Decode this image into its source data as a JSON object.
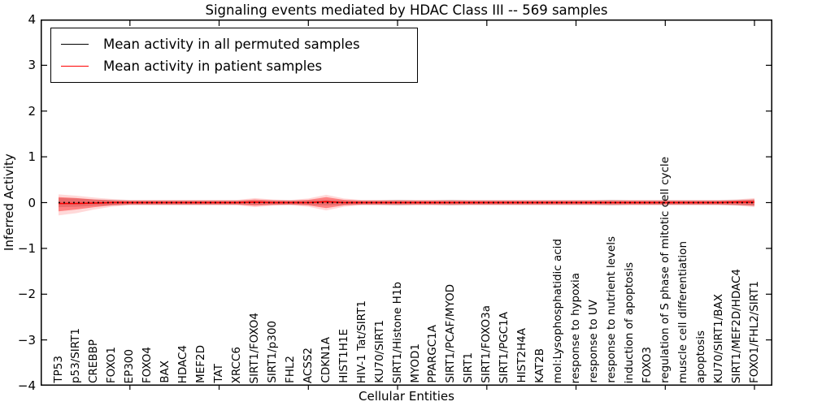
{
  "title": "Signaling events mediated by HDAC Class III -- 569 samples",
  "axes": {
    "ytick_labels": [
      "4",
      "3",
      "2",
      "1",
      "0",
      "−1",
      "−2",
      "−3",
      "−4"
    ]
  },
  "chart_data": {
    "type": "line",
    "title": "Signaling events mediated by HDAC Class III -- 569 samples",
    "xlabel": "Cellular Entities",
    "ylabel": "Inferred Activity",
    "ylim": [
      -4,
      4
    ],
    "xlim": [
      0,
      41
    ],
    "xtick_interval": 5,
    "grid": "off",
    "legend_position": "upper left",
    "categories": [
      "TP53",
      "p53/SIRT1",
      "CREBBP",
      "FOXO1",
      "EP300",
      "FOXO4",
      "BAX",
      "HDAC4",
      "MEF2D",
      "TAT",
      "XRCC6",
      "SIRT1/FOXO4",
      "SIRT1/p300",
      "FHL2",
      "ACSS2",
      "CDKN1A",
      "HIST1H1E",
      "HIV-1 Tat/SIRT1",
      "KU70/SIRT1",
      "SIRT1/Histone H1b",
      "MYOD1",
      "PPARGC1A",
      "SIRT1/PCAF/MYOD",
      "SIRT1",
      "SIRT1/FOXO3a",
      "SIRT1/PGC1A",
      "HIST2H4A",
      "KAT2B",
      "mol:Lysophosphatidic acid",
      "response to hypoxia",
      "response to UV",
      "response to nutrient levels",
      "induction of apoptosis",
      "FOXO3",
      "regulation of S phase of mitotic cell cycle",
      "muscle cell differentiation",
      "apoptosis",
      "KU70/SIRT1/BAX",
      "SIRT1/MEF2D/HDAC4",
      "FOXO1/FHL2/SIRT1"
    ],
    "series": [
      {
        "name": "Mean activity in all permuted samples",
        "id": "permuted",
        "color": "#000000",
        "line_style": "dotted",
        "dash": "1.8 4.2",
        "width": 1.8,
        "values": [
          0,
          0,
          0,
          0,
          0,
          0,
          0,
          0,
          0,
          0,
          0,
          0,
          0,
          0,
          0,
          0,
          0,
          0,
          0,
          0,
          0,
          0,
          0,
          0,
          0,
          0,
          0,
          0,
          0,
          0,
          0,
          0,
          0,
          0,
          0,
          0,
          0,
          0,
          0,
          0
        ]
      },
      {
        "name": "Mean activity in patient samples",
        "id": "patient",
        "color": "#ff0000",
        "line_style": "solid",
        "dash": "",
        "width": 1.6,
        "values": [
          -0.02,
          -0.02,
          -0.01,
          0,
          0,
          0,
          0,
          0,
          0,
          0,
          0,
          0.01,
          0,
          0,
          0,
          0.02,
          0,
          0,
          0,
          0,
          0,
          0,
          0,
          0,
          0,
          0,
          0,
          0,
          0,
          0,
          0,
          0,
          0,
          0,
          0,
          0,
          0,
          0,
          0.01,
          0.01
        ]
      }
    ],
    "bands": [
      {
        "name": "permuted-range",
        "color": "#777777",
        "opacity": 0.3,
        "upper": [
          0.1,
          0.09,
          0.07,
          0.06,
          0.05,
          0.05,
          0.05,
          0.05,
          0.05,
          0.05,
          0.05,
          0.05,
          0.05,
          0.05,
          0.05,
          0.06,
          0.05,
          0.05,
          0.05,
          0.06,
          0.05,
          0.05,
          0.06,
          0.05,
          0.05,
          0.05,
          0.05,
          0.05,
          0.05,
          0.05,
          0.05,
          0.06,
          0.05,
          0.05,
          0.05,
          0.05,
          0.05,
          0.05,
          0.06,
          0.07
        ],
        "lower": [
          -0.1,
          -0.09,
          -0.07,
          -0.06,
          -0.05,
          -0.05,
          -0.05,
          -0.05,
          -0.05,
          -0.05,
          -0.05,
          -0.05,
          -0.05,
          -0.05,
          -0.05,
          -0.06,
          -0.05,
          -0.05,
          -0.05,
          -0.06,
          -0.05,
          -0.05,
          -0.06,
          -0.05,
          -0.05,
          -0.05,
          -0.05,
          -0.05,
          -0.05,
          -0.05,
          -0.05,
          -0.06,
          -0.05,
          -0.05,
          -0.05,
          -0.05,
          -0.05,
          -0.05,
          -0.06,
          -0.07
        ]
      },
      {
        "name": "patient-range-outer",
        "color": "#ff0000",
        "opacity": 0.15,
        "upper": [
          0.18,
          0.15,
          0.11,
          0.08,
          0.06,
          0.06,
          0.06,
          0.06,
          0.06,
          0.06,
          0.06,
          0.1,
          0.07,
          0.06,
          0.09,
          0.17,
          0.09,
          0.06,
          0.06,
          0.06,
          0.06,
          0.06,
          0.06,
          0.06,
          0.06,
          0.06,
          0.06,
          0.06,
          0.06,
          0.06,
          0.06,
          0.06,
          0.06,
          0.06,
          0.06,
          0.06,
          0.06,
          0.06,
          0.07,
          0.1
        ],
        "lower": [
          -0.28,
          -0.23,
          -0.15,
          -0.09,
          -0.06,
          -0.06,
          -0.06,
          -0.06,
          -0.06,
          -0.06,
          -0.06,
          -0.1,
          -0.07,
          -0.06,
          -0.09,
          -0.17,
          -0.09,
          -0.06,
          -0.06,
          -0.06,
          -0.06,
          -0.06,
          -0.06,
          -0.06,
          -0.06,
          -0.06,
          -0.06,
          -0.06,
          -0.06,
          -0.06,
          -0.06,
          -0.06,
          -0.06,
          -0.06,
          -0.06,
          -0.06,
          -0.06,
          -0.06,
          -0.07,
          -0.1
        ]
      },
      {
        "name": "patient-range",
        "color": "#ff0000",
        "opacity": 0.4,
        "upper": [
          0.12,
          0.1,
          0.07,
          0.05,
          0.04,
          0.04,
          0.04,
          0.04,
          0.04,
          0.04,
          0.04,
          0.07,
          0.05,
          0.04,
          0.06,
          0.12,
          0.06,
          0.04,
          0.04,
          0.04,
          0.04,
          0.04,
          0.04,
          0.04,
          0.04,
          0.04,
          0.04,
          0.04,
          0.04,
          0.04,
          0.04,
          0.04,
          0.04,
          0.04,
          0.04,
          0.04,
          0.04,
          0.04,
          0.05,
          0.07
        ],
        "lower": [
          -0.19,
          -0.15,
          -0.1,
          -0.06,
          -0.04,
          -0.04,
          -0.04,
          -0.04,
          -0.04,
          -0.04,
          -0.04,
          -0.07,
          -0.05,
          -0.04,
          -0.06,
          -0.12,
          -0.06,
          -0.04,
          -0.04,
          -0.04,
          -0.04,
          -0.04,
          -0.04,
          -0.04,
          -0.04,
          -0.04,
          -0.04,
          -0.04,
          -0.04,
          -0.04,
          -0.04,
          -0.04,
          -0.04,
          -0.04,
          -0.04,
          -0.04,
          -0.04,
          -0.04,
          -0.05,
          -0.07
        ]
      }
    ]
  }
}
